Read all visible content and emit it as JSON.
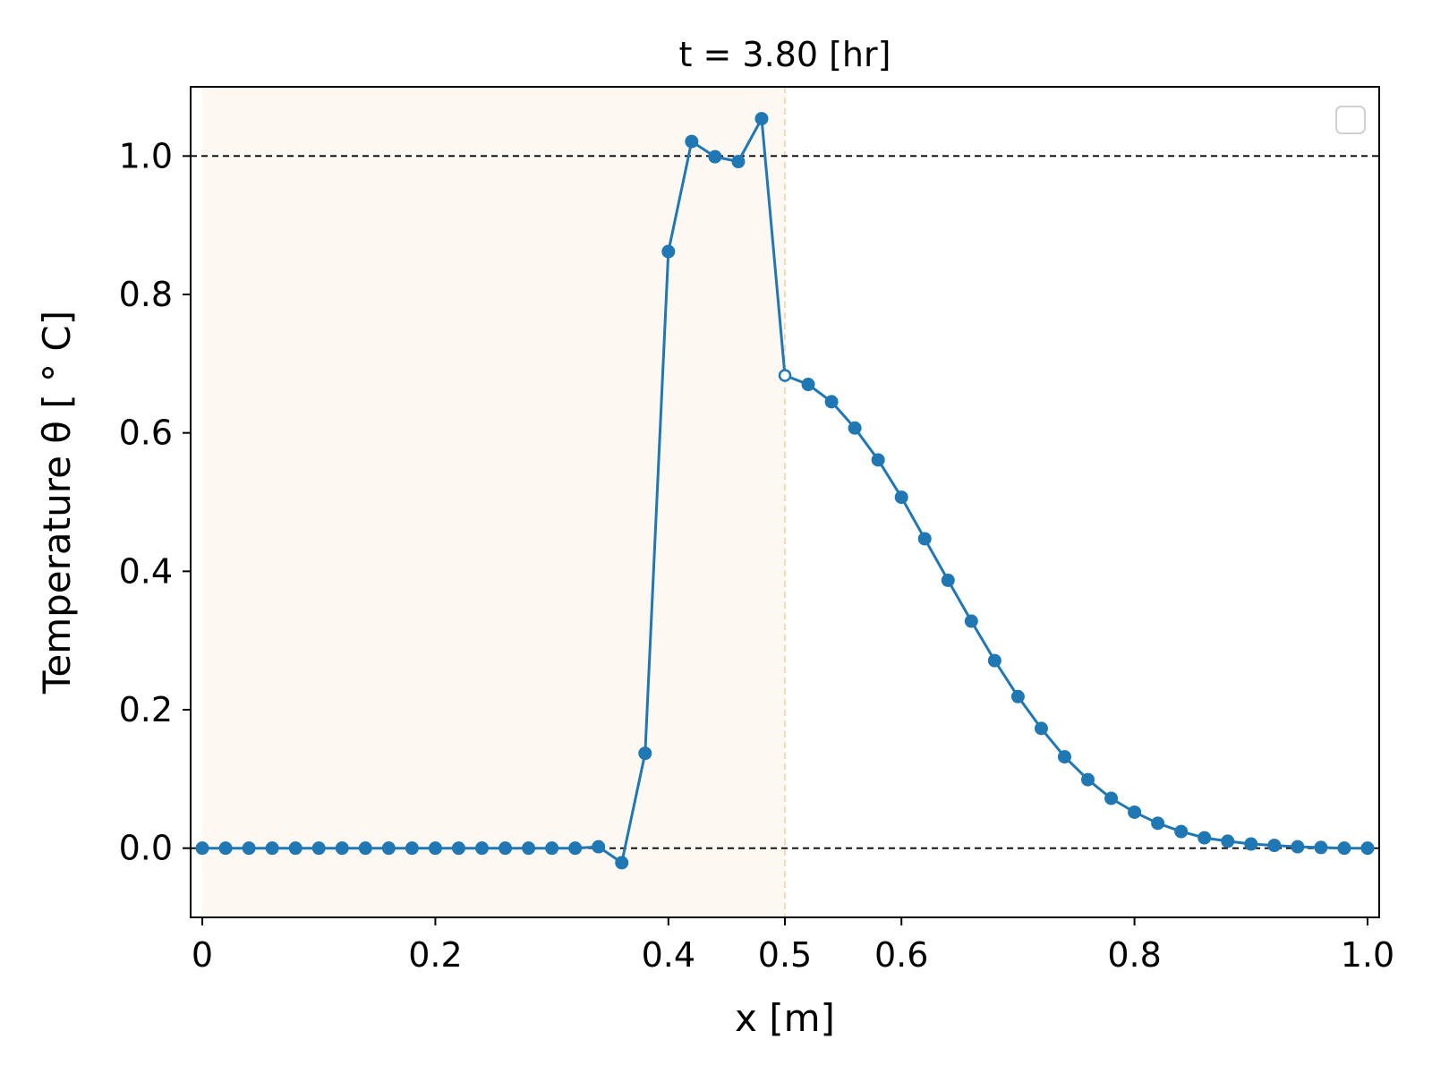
{
  "colors": {
    "series": "#1f77b4",
    "shaded_region": "#fdf8f2",
    "shade_boundary": "#f5d9b5",
    "reference_lines": "#000000"
  },
  "chart_data": {
    "type": "line",
    "title": "t = 3.80 [hr]",
    "xlabel": "x [m]",
    "ylabel": "Temperature θ [ ° C]",
    "xlim": [
      -0.01,
      1.01
    ],
    "ylim": [
      -0.1,
      1.1
    ],
    "xticks": [
      {
        "value": 0,
        "label": "0"
      },
      {
        "value": 0.2,
        "label": "0.2"
      },
      {
        "value": 0.4,
        "label": "0.4"
      },
      {
        "value": 0.5,
        "label": "0.5"
      },
      {
        "value": 0.6,
        "label": "0.6"
      },
      {
        "value": 0.8,
        "label": "0.8"
      },
      {
        "value": 1.0,
        "label": "1.0"
      }
    ],
    "yticks": [
      {
        "value": 0.0,
        "label": "0.0"
      },
      {
        "value": 0.2,
        "label": "0.2"
      },
      {
        "value": 0.4,
        "label": "0.4"
      },
      {
        "value": 0.6,
        "label": "0.6"
      },
      {
        "value": 0.8,
        "label": "0.8"
      },
      {
        "value": 1.0,
        "label": "1.0"
      }
    ],
    "reference_lines": [
      0.0,
      1.0
    ],
    "shaded_region": [
      0.0,
      0.5
    ],
    "legend": "top-right (empty)",
    "grid": false,
    "series": [
      {
        "x": [
          0,
          0.02,
          0.04,
          0.06,
          0.08,
          0.1,
          0.12,
          0.14,
          0.16,
          0.18,
          0.2,
          0.22,
          0.24,
          0.26,
          0.28,
          0.3,
          0.32,
          0.34,
          0.36,
          0.38,
          0.4,
          0.42,
          0.44,
          0.46,
          0.48,
          0.5,
          0.52,
          0.54,
          0.56,
          0.58,
          0.6,
          0.62,
          0.64,
          0.66,
          0.68,
          0.7,
          0.72,
          0.74,
          0.76,
          0.78,
          0.8,
          0.82,
          0.84,
          0.86,
          0.88,
          0.9,
          0.92,
          0.94,
          0.96,
          0.98,
          1.0
        ],
        "y": [
          0,
          0,
          0,
          0,
          0,
          0,
          0,
          0,
          0,
          0,
          0,
          0,
          0,
          0,
          0,
          0,
          0,
          0.002,
          -0.021,
          0.137,
          0.862,
          1.021,
          0.999,
          0.992,
          1.054,
          0.683,
          0.67,
          0.645,
          0.607,
          0.561,
          0.507,
          0.447,
          0.387,
          0.328,
          0.271,
          0.219,
          0.173,
          0.132,
          0.099,
          0.072,
          0.052,
          0.036,
          0.024,
          0.015,
          0.01,
          0.006,
          0.004,
          0.002,
          0.001,
          0,
          0
        ],
        "open_marker_x": 0.5
      }
    ]
  }
}
